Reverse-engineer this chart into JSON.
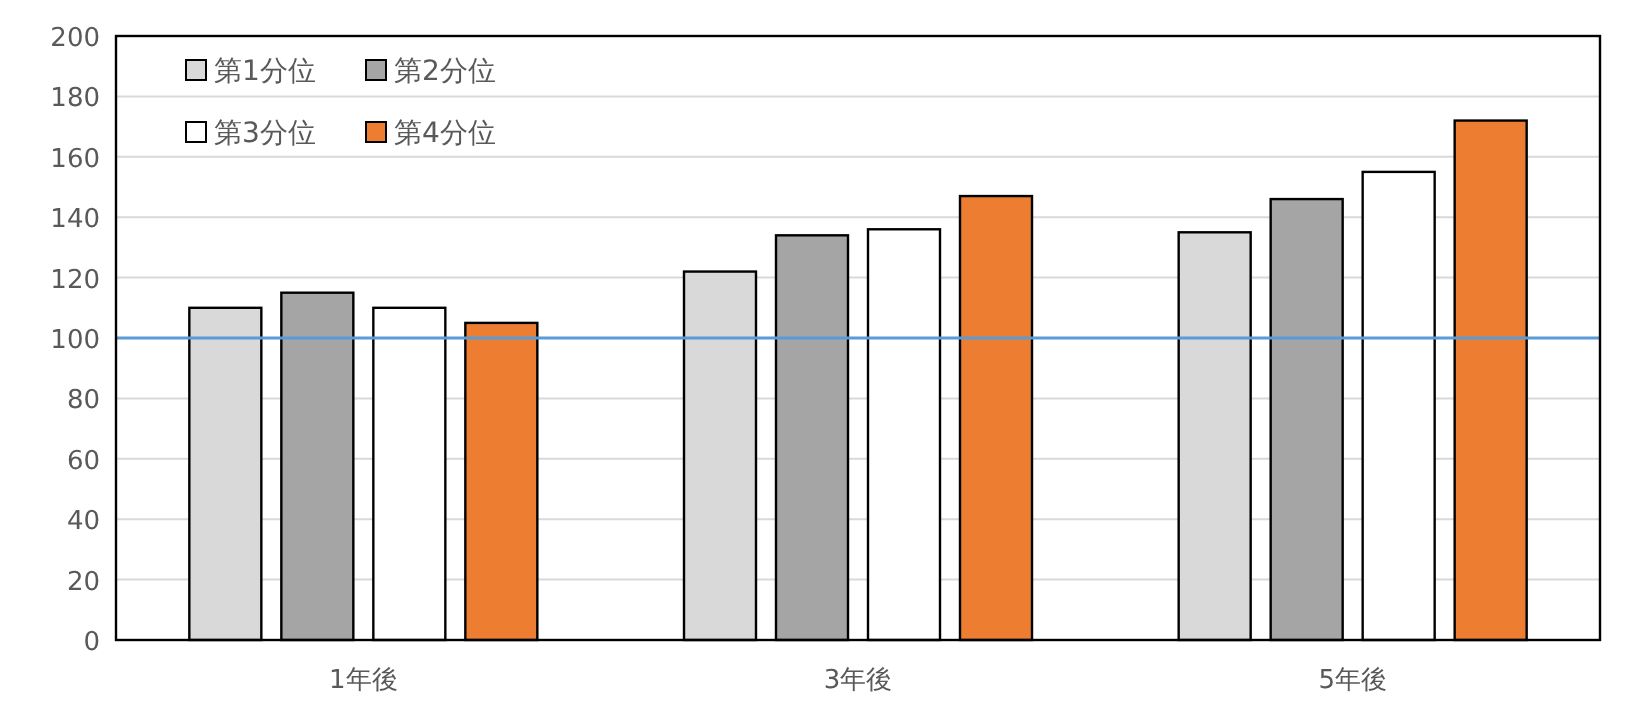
{
  "chart_data": {
    "type": "bar",
    "categories": [
      "1年後",
      "3年後",
      "5年後"
    ],
    "series": [
      {
        "name": "第1分位",
        "color": "#d9d9d9",
        "values": [
          110,
          122,
          135
        ]
      },
      {
        "name": "第2分位",
        "color": "#a5a5a5",
        "values": [
          115,
          134,
          146
        ]
      },
      {
        "name": "第3分位",
        "color": "#ffffff",
        "values": [
          110,
          136,
          155
        ]
      },
      {
        "name": "第4分位",
        "color": "#ed7d31",
        "values": [
          105,
          147,
          172
        ]
      }
    ],
    "ylim": [
      0,
      200
    ],
    "yticks": [
      0,
      20,
      40,
      60,
      80,
      100,
      120,
      140,
      160,
      180,
      200
    ],
    "grid": "y",
    "legend": "top left",
    "ref_lines": [
      {
        "axis": "y",
        "value": 100,
        "color": "#5b9bd5"
      }
    ]
  }
}
